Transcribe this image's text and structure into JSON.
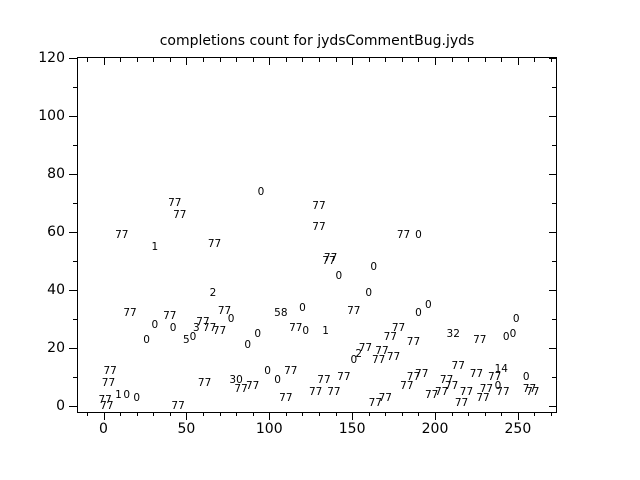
{
  "title": "completions count for jydsCommentBug.jyds",
  "colors": {
    "foreground": "#000000",
    "background": "#ffffff"
  },
  "chart_data": {
    "type": "scatter",
    "title": "completions count for jydsCommentBug.jyds",
    "xlabel": "",
    "ylabel": "",
    "marker": "numeric-text-labels",
    "grid": false,
    "legend": "none",
    "xlim": [
      -16,
      273
    ],
    "ylim": [
      -2,
      120.5
    ],
    "x_major_ticks": [
      0,
      50,
      100,
      150,
      200,
      250
    ],
    "y_major_ticks": [
      0,
      20,
      40,
      60,
      80,
      100,
      120
    ],
    "x_minor_step": 10,
    "y_minor_step": 10,
    "points": [
      {
        "x": 1,
        "y": 2,
        "label": "77"
      },
      {
        "x": 2,
        "y": 0,
        "label": "77"
      },
      {
        "x": 3,
        "y": 8,
        "label": "77"
      },
      {
        "x": 4,
        "y": 12,
        "label": "77"
      },
      {
        "x": 9,
        "y": 4,
        "label": "1"
      },
      {
        "x": 14,
        "y": 4,
        "label": "0"
      },
      {
        "x": 20,
        "y": 3,
        "label": "0"
      },
      {
        "x": 11,
        "y": 59,
        "label": "77"
      },
      {
        "x": 16,
        "y": 32,
        "label": "77"
      },
      {
        "x": 26,
        "y": 23,
        "label": "0"
      },
      {
        "x": 31,
        "y": 28,
        "label": "0"
      },
      {
        "x": 40,
        "y": 31,
        "label": "77"
      },
      {
        "x": 42,
        "y": 27,
        "label": "0"
      },
      {
        "x": 31,
        "y": 55,
        "label": "1"
      },
      {
        "x": 45,
        "y": 0,
        "label": "77"
      },
      {
        "x": 43,
        "y": 70,
        "label": "77"
      },
      {
        "x": 46,
        "y": 66,
        "label": "77"
      },
      {
        "x": 50,
        "y": 23,
        "label": "5"
      },
      {
        "x": 54,
        "y": 24,
        "label": "0"
      },
      {
        "x": 56,
        "y": 27,
        "label": "3"
      },
      {
        "x": 60,
        "y": 29,
        "label": "77"
      },
      {
        "x": 64,
        "y": 27,
        "label": "77"
      },
      {
        "x": 70,
        "y": 26,
        "label": "77"
      },
      {
        "x": 66,
        "y": 39,
        "label": "2"
      },
      {
        "x": 67,
        "y": 56,
        "label": "77"
      },
      {
        "x": 73,
        "y": 33,
        "label": "77"
      },
      {
        "x": 77,
        "y": 30,
        "label": "0"
      },
      {
        "x": 61,
        "y": 8,
        "label": "77"
      },
      {
        "x": 80,
        "y": 9,
        "label": "30"
      },
      {
        "x": 83,
        "y": 6,
        "label": "77"
      },
      {
        "x": 90,
        "y": 7,
        "label": "77"
      },
      {
        "x": 87,
        "y": 21,
        "label": "0"
      },
      {
        "x": 93,
        "y": 25,
        "label": "0"
      },
      {
        "x": 95,
        "y": 74,
        "label": "0"
      },
      {
        "x": 99,
        "y": 12,
        "label": "0"
      },
      {
        "x": 105,
        "y": 9,
        "label": "0"
      },
      {
        "x": 107,
        "y": 32,
        "label": "58"
      },
      {
        "x": 110,
        "y": 3,
        "label": "77"
      },
      {
        "x": 113,
        "y": 12,
        "label": "77"
      },
      {
        "x": 116,
        "y": 27,
        "label": "77"
      },
      {
        "x": 120,
        "y": 34,
        "label": "0"
      },
      {
        "x": 122,
        "y": 26,
        "label": "0"
      },
      {
        "x": 128,
        "y": 5,
        "label": "77"
      },
      {
        "x": 130,
        "y": 69,
        "label": "77"
      },
      {
        "x": 130,
        "y": 62,
        "label": "77"
      },
      {
        "x": 133,
        "y": 9,
        "label": "77"
      },
      {
        "x": 134,
        "y": 26,
        "label": "1"
      },
      {
        "x": 137,
        "y": 51,
        "label": "77"
      },
      {
        "x": 136,
        "y": 50,
        "label": "77"
      },
      {
        "x": 139,
        "y": 5,
        "label": "77"
      },
      {
        "x": 142,
        "y": 45,
        "label": "0"
      },
      {
        "x": 145,
        "y": 10,
        "label": "77"
      },
      {
        "x": 151,
        "y": 33,
        "label": "77"
      },
      {
        "x": 151,
        "y": 16,
        "label": "0"
      },
      {
        "x": 154,
        "y": 18,
        "label": "2"
      },
      {
        "x": 158,
        "y": 20,
        "label": "77"
      },
      {
        "x": 160,
        "y": 39,
        "label": "0"
      },
      {
        "x": 163,
        "y": 48,
        "label": "0"
      },
      {
        "x": 164,
        "y": 1,
        "label": "77"
      },
      {
        "x": 166,
        "y": 16,
        "label": "77"
      },
      {
        "x": 168,
        "y": 19,
        "label": "77"
      },
      {
        "x": 170,
        "y": 3,
        "label": "77"
      },
      {
        "x": 173,
        "y": 24,
        "label": "77"
      },
      {
        "x": 175,
        "y": 17,
        "label": "77"
      },
      {
        "x": 178,
        "y": 27,
        "label": "77"
      },
      {
        "x": 181,
        "y": 59,
        "label": "77"
      },
      {
        "x": 183,
        "y": 7,
        "label": "77"
      },
      {
        "x": 187,
        "y": 22,
        "label": "77"
      },
      {
        "x": 187,
        "y": 10,
        "label": "77"
      },
      {
        "x": 190,
        "y": 59,
        "label": "0"
      },
      {
        "x": 192,
        "y": 11,
        "label": "77"
      },
      {
        "x": 196,
        "y": 35,
        "label": "0"
      },
      {
        "x": 190,
        "y": 32,
        "label": "0"
      },
      {
        "x": 198,
        "y": 4,
        "label": "77"
      },
      {
        "x": 204,
        "y": 5,
        "label": "77"
      },
      {
        "x": 207,
        "y": 9,
        "label": "77"
      },
      {
        "x": 210,
        "y": 7,
        "label": "77"
      },
      {
        "x": 211,
        "y": 25,
        "label": "32"
      },
      {
        "x": 214,
        "y": 14,
        "label": "77"
      },
      {
        "x": 216,
        "y": 1,
        "label": "77"
      },
      {
        "x": 219,
        "y": 5,
        "label": "77"
      },
      {
        "x": 225,
        "y": 11,
        "label": "77"
      },
      {
        "x": 227,
        "y": 23,
        "label": "77"
      },
      {
        "x": 229,
        "y": 3,
        "label": "77"
      },
      {
        "x": 231,
        "y": 6,
        "label": "77"
      },
      {
        "x": 236,
        "y": 10,
        "label": "77"
      },
      {
        "x": 238,
        "y": 7,
        "label": "0"
      },
      {
        "x": 240,
        "y": 13,
        "label": "14"
      },
      {
        "x": 241,
        "y": 5,
        "label": "77"
      },
      {
        "x": 243,
        "y": 24,
        "label": "0"
      },
      {
        "x": 247,
        "y": 25,
        "label": "0"
      },
      {
        "x": 249,
        "y": 30,
        "label": "0"
      },
      {
        "x": 255,
        "y": 10,
        "label": "0"
      },
      {
        "x": 257,
        "y": 6,
        "label": "77"
      },
      {
        "x": 259,
        "y": 5,
        "label": "77"
      }
    ]
  }
}
